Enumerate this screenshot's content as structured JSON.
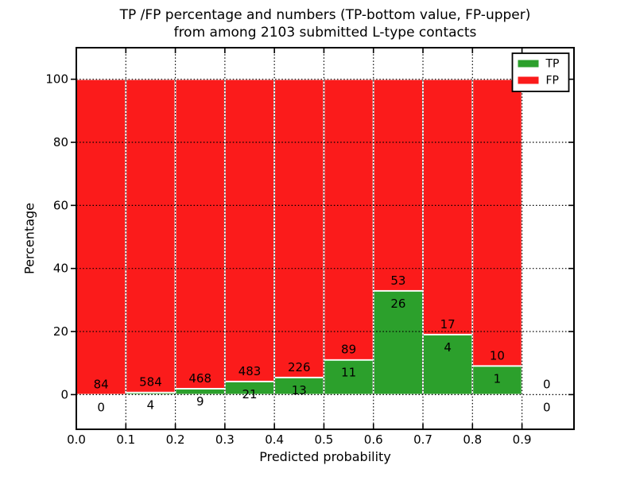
{
  "figure": {
    "title_line1": "TP /FP percentage and numbers (TP-bottom value, FP-upper)",
    "title_line2": "from among 2103 submitted L-type contacts",
    "xlabel": "Predicted probability",
    "ylabel": "Percentage"
  },
  "chart_data": {
    "type": "bar",
    "stacked": true,
    "title": "TP /FP percentage and numbers (TP-bottom value, FP-upper) from among 2103 submitted L-type contacts",
    "xlabel": "Predicted probability",
    "ylabel": "Percentage",
    "total_contacts": 2103,
    "grid": "dotted",
    "xlim": [
      0,
      1.005
    ],
    "ylim": [
      -11,
      110
    ],
    "xticks": [
      "0.0",
      "0.1",
      "0.2",
      "0.3",
      "0.4",
      "0.5",
      "0.6",
      "0.7",
      "0.8",
      "0.9"
    ],
    "xtick_values": [
      0.0,
      0.1,
      0.2,
      0.3,
      0.4,
      0.5,
      0.6,
      0.7,
      0.8,
      0.9
    ],
    "yticks": [
      0,
      20,
      40,
      60,
      80,
      100
    ],
    "colors": {
      "tp": "#2ca02c",
      "fp": "#fb1b1b",
      "bar_edge": "#ffffff"
    },
    "legend": {
      "position": "upper-right",
      "entries": [
        {
          "label": "TP",
          "color": "#2ca02c"
        },
        {
          "label": "FP",
          "color": "#fb1b1b"
        }
      ]
    },
    "bins": [
      {
        "range": [
          0.0,
          0.1
        ],
        "tp": 0,
        "fp": 84,
        "tp_pct": 0.0,
        "fp_pct": 100.0,
        "has_bar": true
      },
      {
        "range": [
          0.1,
          0.2
        ],
        "tp": 4,
        "fp": 584,
        "tp_pct": 0.68,
        "fp_pct": 99.32,
        "has_bar": true
      },
      {
        "range": [
          0.2,
          0.3
        ],
        "tp": 9,
        "fp": 468,
        "tp_pct": 1.89,
        "fp_pct": 98.11,
        "has_bar": true
      },
      {
        "range": [
          0.3,
          0.4
        ],
        "tp": 21,
        "fp": 483,
        "tp_pct": 4.17,
        "fp_pct": 95.83,
        "has_bar": true
      },
      {
        "range": [
          0.4,
          0.5
        ],
        "tp": 13,
        "fp": 226,
        "tp_pct": 5.44,
        "fp_pct": 94.56,
        "has_bar": true
      },
      {
        "range": [
          0.5,
          0.6
        ],
        "tp": 11,
        "fp": 89,
        "tp_pct": 11.0,
        "fp_pct": 89.0,
        "has_bar": true
      },
      {
        "range": [
          0.6,
          0.7
        ],
        "tp": 26,
        "fp": 53,
        "tp_pct": 32.91,
        "fp_pct": 67.09,
        "has_bar": true
      },
      {
        "range": [
          0.7,
          0.8
        ],
        "tp": 4,
        "fp": 17,
        "tp_pct": 19.05,
        "fp_pct": 80.95,
        "has_bar": true
      },
      {
        "range": [
          0.8,
          0.9
        ],
        "tp": 1,
        "fp": 10,
        "tp_pct": 9.09,
        "fp_pct": 90.91,
        "has_bar": true
      },
      {
        "range": [
          0.9,
          1.0
        ],
        "tp": 0,
        "fp": 0,
        "tp_pct": 0.0,
        "fp_pct": 0.0,
        "has_bar": false
      }
    ]
  }
}
